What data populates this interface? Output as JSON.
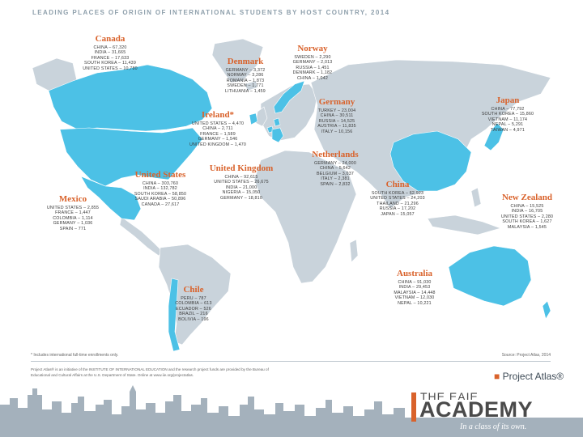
{
  "title": "LEADING PLACES OF ORIGIN OF INTERNATIONAL STUDENTS BY HOST COUNTRY, 2014",
  "colors": {
    "land": "#c9d3db",
    "host_highlight": "#4cc1e6",
    "country_name": "#d9622b",
    "skyline": "#a4b1bc"
  },
  "countries": [
    {
      "id": "canada",
      "name": "Canada",
      "rows": [
        "CHINA – 67,320",
        "INDIA – 31,665",
        "FRANCE – 17,633",
        "SOUTH KOREA – 11,439",
        "UNITED STATES – 10,780"
      ]
    },
    {
      "id": "norway",
      "name": "Norway",
      "rows": [
        "SWEDEN – 2,290",
        "GERMANY – 2,013",
        "RUSSIA – 1,451",
        "DENMARK – 1,182",
        "CHINA – 1,042"
      ]
    },
    {
      "id": "denmark",
      "name": "Denmark",
      "rows": [
        "GERMANY – 3,372",
        "NORWAY – 3,286",
        "ROMANIA – 1,873",
        "SWEDEN – 1,771",
        "LITHUANIA – 1,459"
      ]
    },
    {
      "id": "japan",
      "name": "Japan",
      "rows": [
        "CHINA – 77,792",
        "SOUTH KOREA – 15,860",
        "VIETNAM – 11,174",
        "NEPAL – 5,291",
        "TAIWAN – 4,971"
      ]
    },
    {
      "id": "ireland",
      "name": "Ireland*",
      "rows": [
        "UNITED STATES – 4,470",
        "CHINA – 2,711",
        "FRANCE – 1,589",
        "GERMANY – 1,546",
        "UNITED KINGDOM – 1,470"
      ]
    },
    {
      "id": "germany",
      "name": "Germany",
      "rows": [
        "TURKEY – 23,004",
        "CHINA – 30,511",
        "RUSSIA – 14,525",
        "AUSTRIA – 11,835",
        "ITALY – 10,156"
      ]
    },
    {
      "id": "netherlands",
      "name": "Netherlands",
      "rows": [
        "GERMANY – 24,000",
        "CHINA – 5,642",
        "BELGIUM – 3,037",
        "ITALY – 2,381",
        "SPAIN – 2,832"
      ]
    },
    {
      "id": "united_kingdom",
      "name": "United Kingdom",
      "rows": [
        "CHINA – 92,615",
        "UNITED STATES – 26,675",
        "INDIA – 21,000",
        "NIGERIA – 15,050",
        "GERMANY – 18,810"
      ]
    },
    {
      "id": "united_states",
      "name": "United States",
      "rows": [
        "CHINA – 303,760",
        "INDIA – 132,782",
        "SOUTH KOREA – 58,850",
        "SAUDI ARABIA – 50,896",
        "CANADA – 27,617"
      ]
    },
    {
      "id": "china",
      "name": "China",
      "rows": [
        "SOUTH KOREA – 62,923",
        "UNITED STATES – 24,203",
        "THAILAND – 21,296",
        "RUSSIA – 17,202",
        "JAPAN – 15,057"
      ]
    },
    {
      "id": "new_zealand",
      "name": "New Zealand",
      "rows": [
        "CHINA – 15,525",
        "INDIA – 16,705",
        "UNITED STATES – 2,280",
        "SOUTH KOREA – 1,627",
        "MALAYSIA – 1,545"
      ]
    },
    {
      "id": "mexico",
      "name": "Mexico",
      "rows": [
        "UNITED STATES – 2,855",
        "FRANCE – 1,447",
        "COLOMBIA – 1,114",
        "GERMANY – 1,036",
        "SPAIN – 771"
      ]
    },
    {
      "id": "australia",
      "name": "Australia",
      "rows": [
        "CHINA – 91,030",
        "INDIA – 29,453",
        "MALAYSIA – 14,448",
        "VIETNAM – 12,030",
        "NEPAL – 10,221"
      ]
    },
    {
      "id": "chile",
      "name": "Chile",
      "rows": [
        "PERU – 787",
        "COLOMBIA – 613",
        "ECUADOR – 526",
        "BRAZIL – 216",
        "BOLIVIA – 196"
      ]
    }
  ],
  "footer": {
    "footnote": "* Includes international full-time enrollments only.",
    "source": "Source: Project Atlas, 2014",
    "about": "Project Atlas® is an initiative of the INSTITUTE OF INTERNATIONAL EDUCATION and the research project funds are provided by the Bureau of Educational and Cultural Affairs at the U.S. Department of State. Online at www.iie.org/projectatlas.",
    "logo_text": "Project Atlas®"
  },
  "branding": {
    "top_text": "THE EAIE",
    "name": "ACADEMY",
    "tagline": "In a class of its own."
  }
}
